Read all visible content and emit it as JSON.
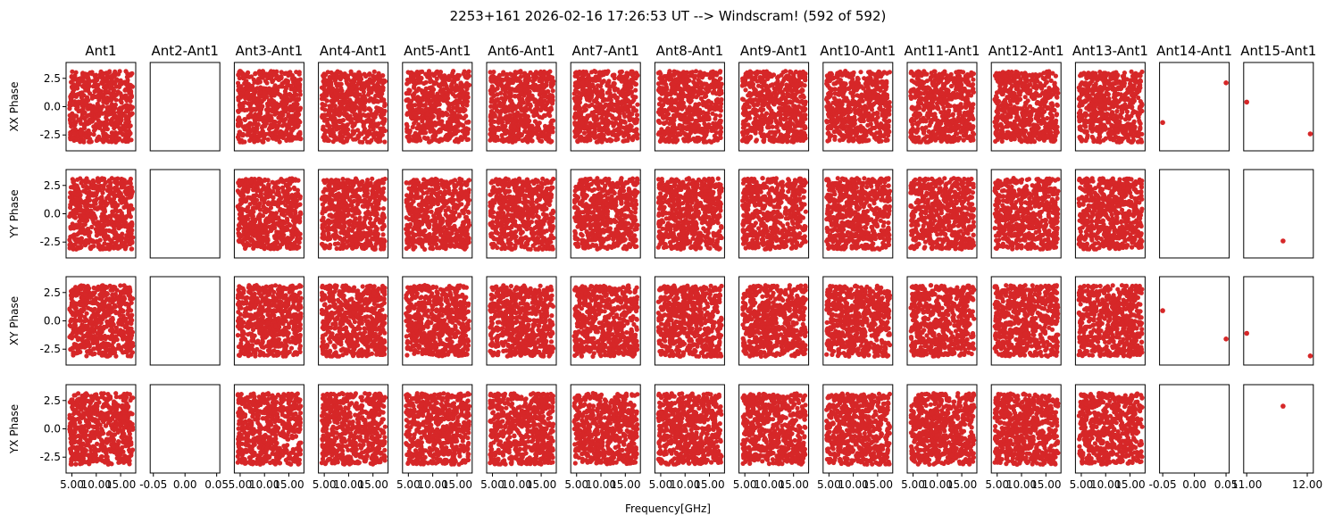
{
  "figure": {
    "title": "2253+161 2026-02-16 17:26:53 UT --> Windscram! (592 of 592)",
    "xlabel": "Frequency[GHz]",
    "point_color": "#d62728"
  },
  "chart_data": {
    "type": "scatter",
    "columns": [
      "Ant1",
      "Ant2-Ant1",
      "Ant3-Ant1",
      "Ant4-Ant1",
      "Ant5-Ant1",
      "Ant6-Ant1",
      "Ant7-Ant1",
      "Ant8-Ant1",
      "Ant9-Ant1",
      "Ant10-Ant1",
      "Ant11-Ant1",
      "Ant12-Ant1",
      "Ant13-Ant1",
      "Ant14-Ant1",
      "Ant15-Ant1"
    ],
    "rows": [
      "XX Phase",
      "YY Phase",
      "XY Phase",
      "YX Phase"
    ],
    "ylim": [
      -3.9,
      3.9
    ],
    "yticks": [
      2.5,
      0.0,
      -2.5
    ],
    "ytick_labels": [
      "2.5",
      "0.0",
      "-2.5"
    ],
    "typical_column": {
      "xlim": [
        3.8,
        18.1
      ],
      "xticks": [
        5.0,
        10.0,
        15.0
      ],
      "xtick_labels": [
        "5.00",
        "10.00",
        "15.00"
      ],
      "freq_range_ghz": [
        4.5,
        17.5
      ],
      "phase_range": [
        -3.14,
        3.14
      ],
      "points_per_panel": 592,
      "distribution": "uniform random phase vs frequency"
    },
    "empty_column": {
      "column": "Ant2-Ant1",
      "xlim": [
        -0.055,
        0.055
      ],
      "xticks": [
        -0.05,
        0.0,
        0.05
      ],
      "xtick_labels": [
        "-0.05",
        "0.00",
        "0.05"
      ],
      "points": []
    },
    "sparse_columns": [
      {
        "column": "Ant14-Ant1",
        "xlim": [
          -0.055,
          0.055
        ],
        "xticks": [
          -0.05,
          0.0,
          0.05
        ],
        "xtick_labels": [
          "-0.05",
          "0.00",
          "0.05"
        ],
        "series": [
          {
            "row": "XX Phase",
            "x": [
              -0.05,
              0.05
            ],
            "y": [
              -1.4,
              2.1
            ]
          },
          {
            "row": "YY Phase",
            "x": [],
            "y": []
          },
          {
            "row": "XY Phase",
            "x": [
              -0.05,
              0.05
            ],
            "y": [
              0.9,
              -1.6
            ]
          },
          {
            "row": "YX Phase",
            "x": [],
            "y": []
          }
        ]
      },
      {
        "column": "Ant15-Ant1",
        "xlim": [
          10.95,
          12.1
        ],
        "xticks": [
          11.0,
          12.0
        ],
        "xtick_labels": [
          "11.00",
          "12.00"
        ],
        "series": [
          {
            "row": "XX Phase",
            "x": [
              11.0,
              12.05
            ],
            "y": [
              0.4,
              -2.4
            ]
          },
          {
            "row": "YY Phase",
            "x": [
              11.6
            ],
            "y": [
              -2.4
            ]
          },
          {
            "row": "XY Phase",
            "x": [
              11.0,
              12.05
            ],
            "y": [
              -1.1,
              -3.1
            ]
          },
          {
            "row": "YX Phase",
            "x": [
              11.6
            ],
            "y": [
              2.0
            ]
          }
        ]
      }
    ]
  }
}
